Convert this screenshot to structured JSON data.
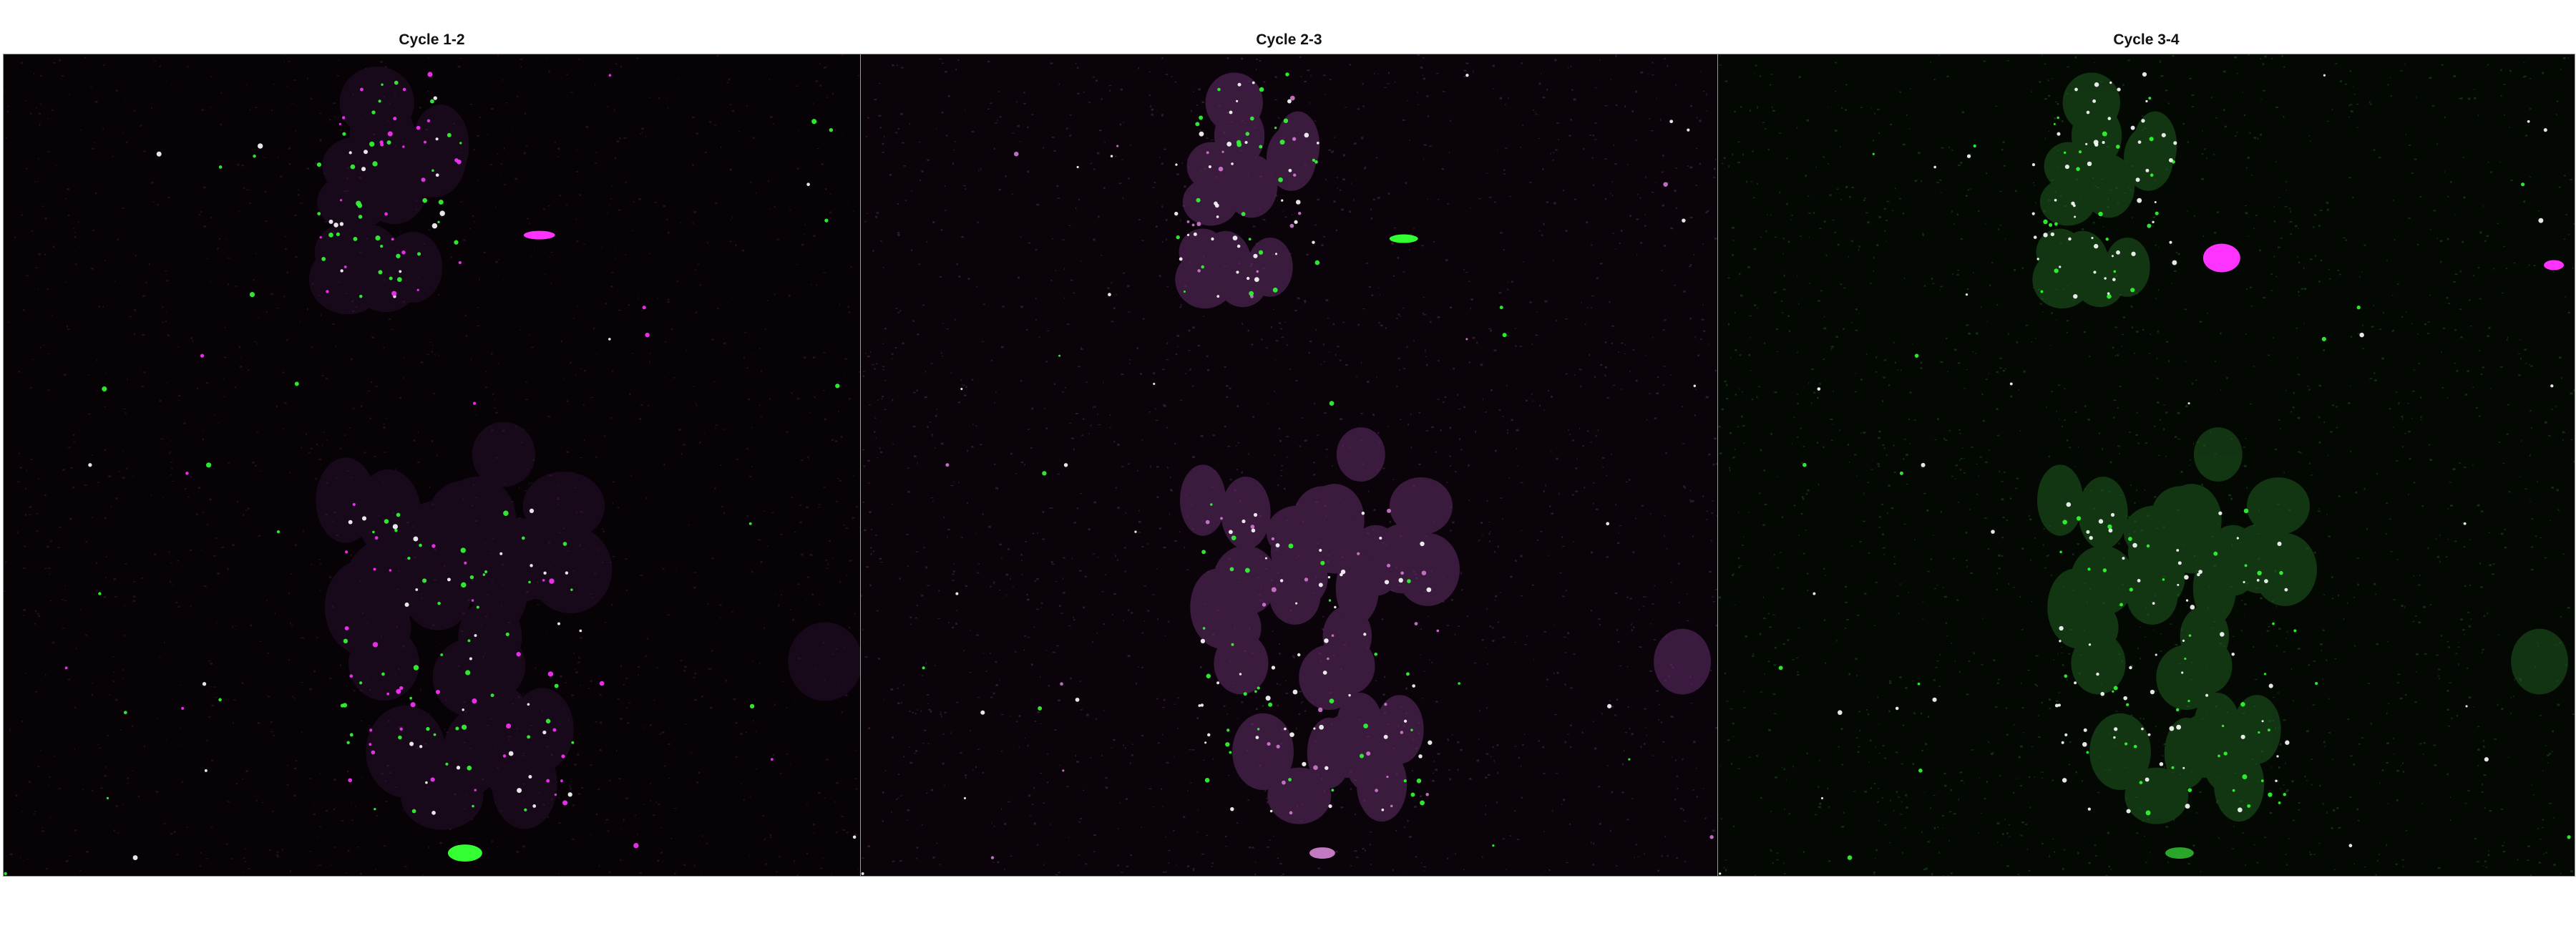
{
  "panels": [
    {
      "title": "Cycle 1-2",
      "mode": "magenta-green-mixed"
    },
    {
      "title": "Cycle 2-3",
      "mode": "magenta-cells"
    },
    {
      "title": "Cycle 3-4",
      "mode": "green-cells"
    }
  ],
  "colors": {
    "background": "#ffffff",
    "magenta": "#ff33ff",
    "green": "#33ff33",
    "spot_white": "#ffffff",
    "panel_bg_1": "#060206",
    "panel_bg_2": "#0a040a",
    "panel_bg_3": "#030803"
  }
}
